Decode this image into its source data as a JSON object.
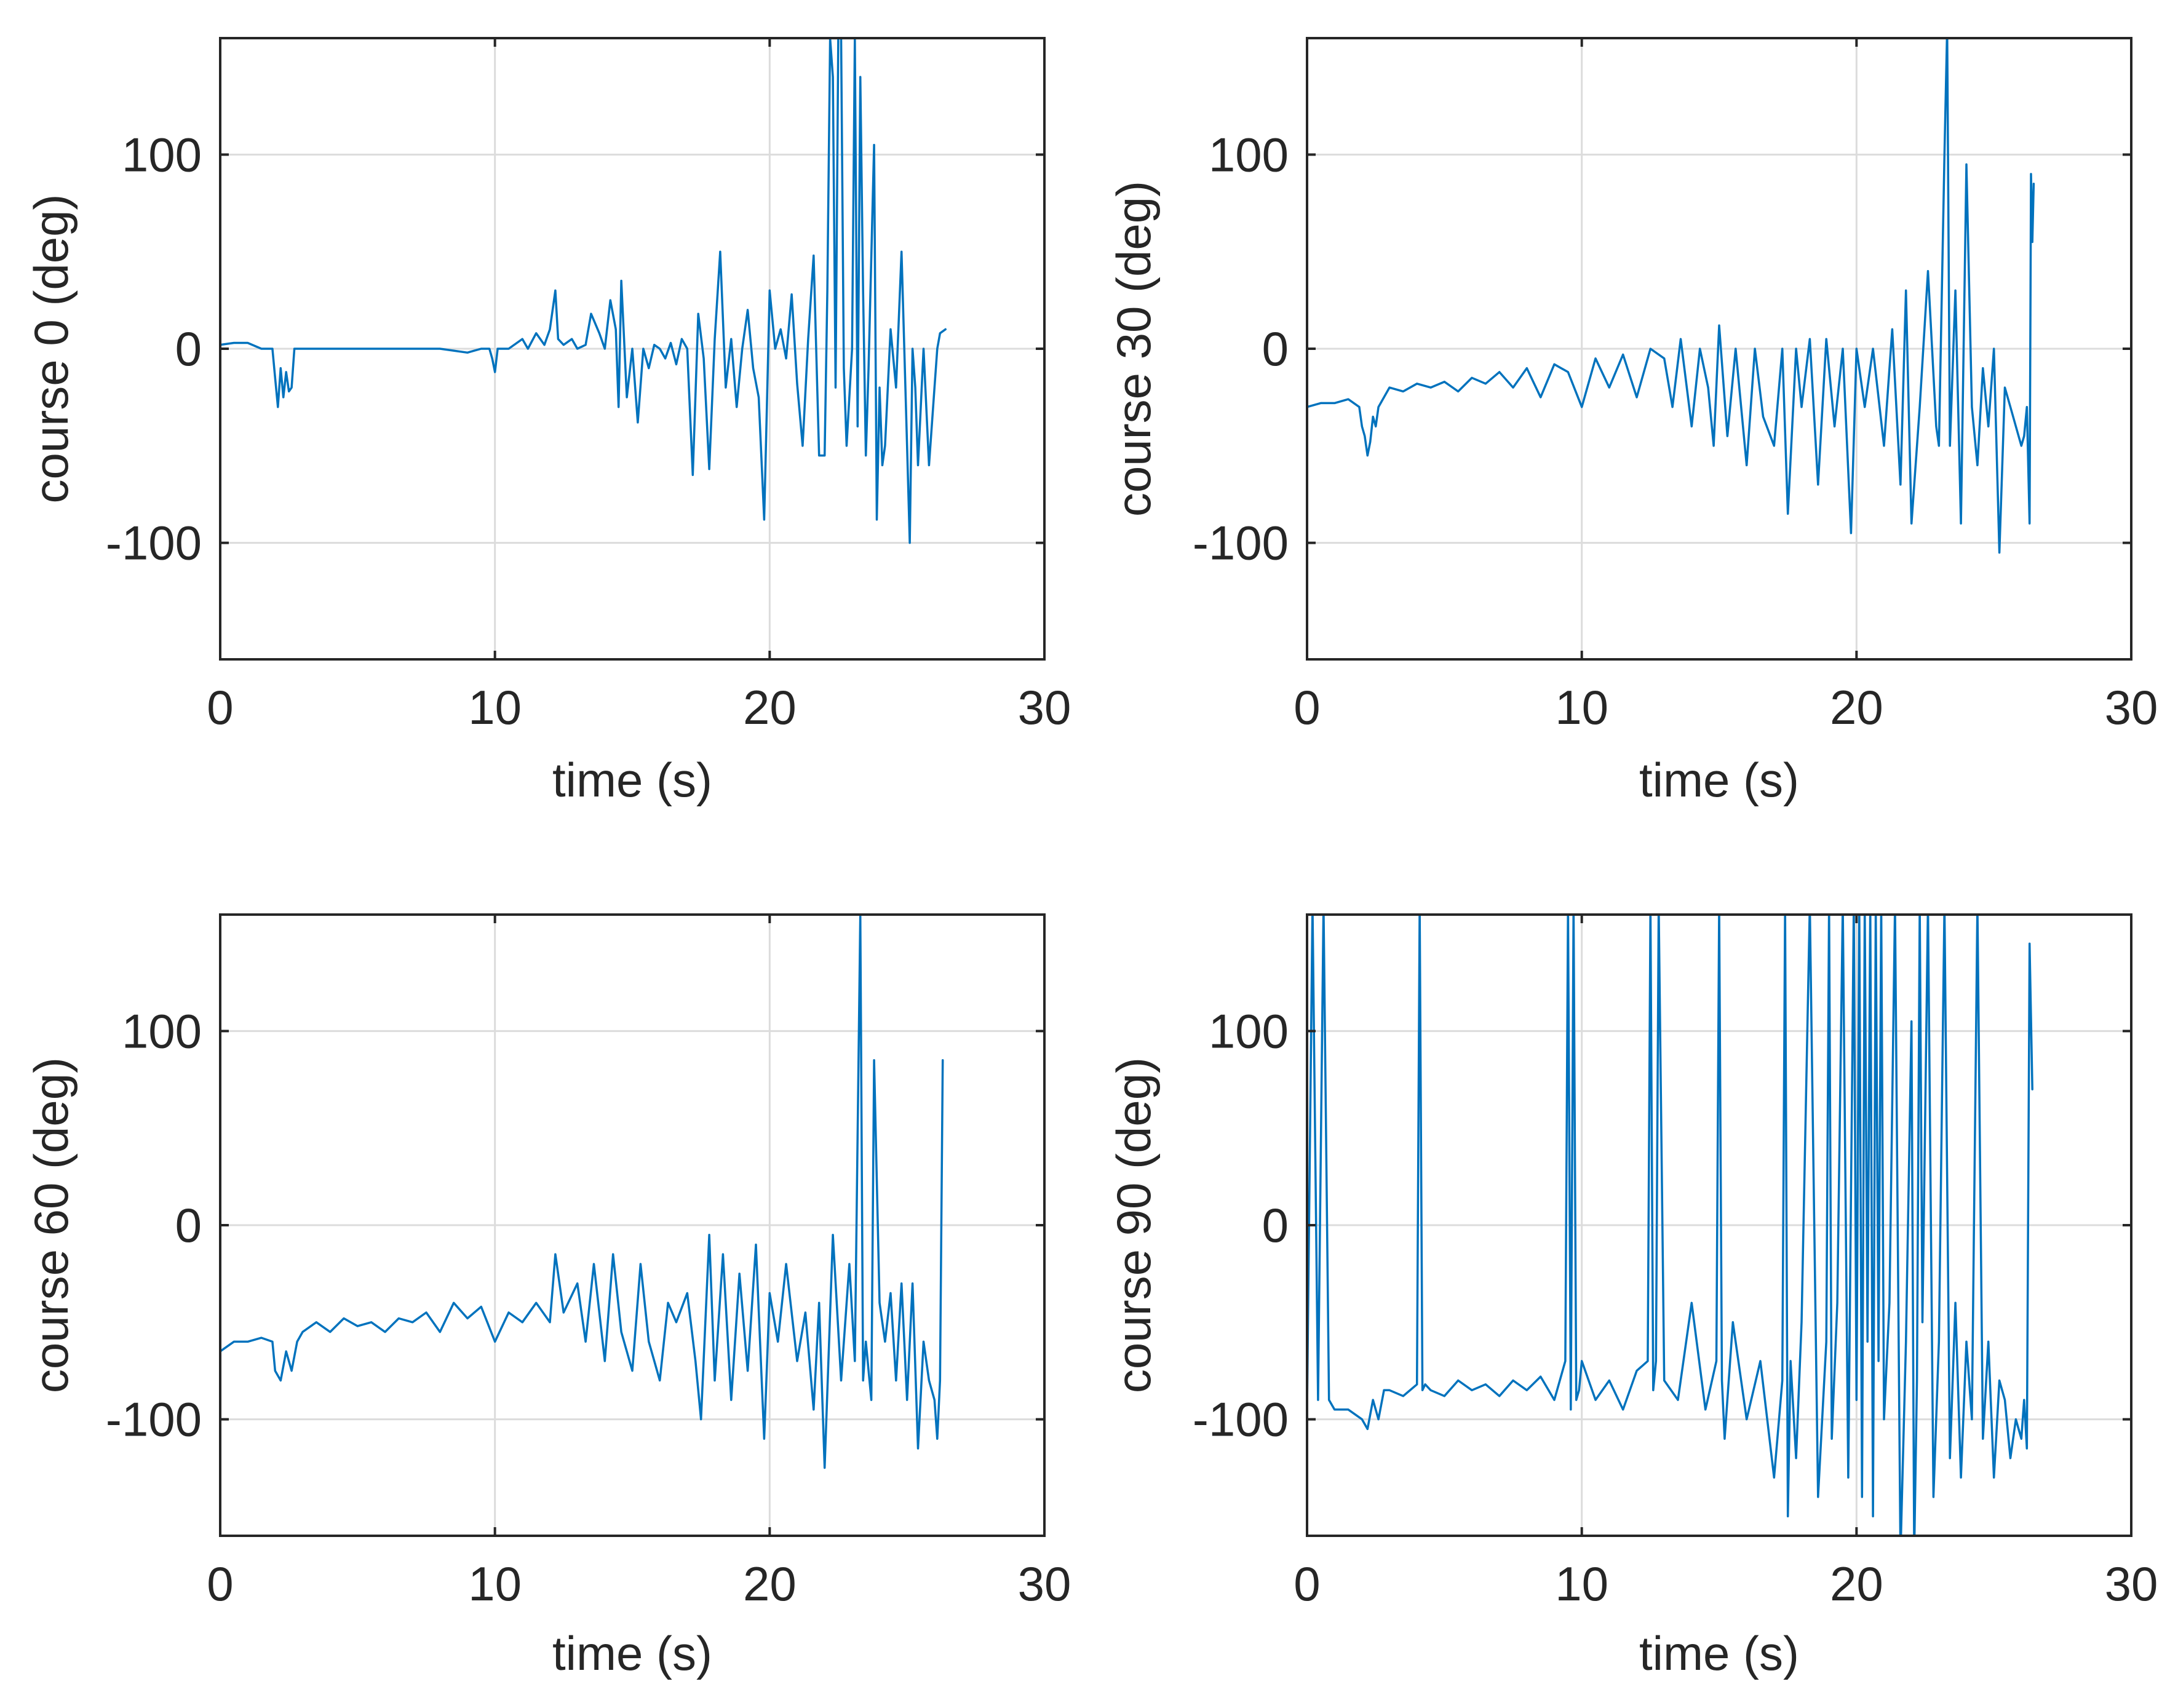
{
  "colors": {
    "series": "#0072BD",
    "axes": "#262626",
    "grid": "#dcdcdc",
    "background": "#ffffff"
  },
  "chart_data": [
    {
      "type": "line",
      "title": "",
      "xlabel": "time (s)",
      "ylabel": "course 0 (deg)",
      "xlim": [
        0,
        30
      ],
      "ylim": [
        -160,
        160
      ],
      "xticks": [
        0,
        10,
        20,
        30
      ],
      "xtick_labels": [
        "0",
        "10",
        "20",
        "30"
      ],
      "yticks": [
        -100,
        0,
        100
      ],
      "ytick_labels": [
        "-100",
        "0",
        "100"
      ],
      "grid": true,
      "series": [
        {
          "name": "course 0",
          "x": [
            0,
            0.5,
            1.0,
            1.5,
            1.9,
            2.0,
            2.1,
            2.2,
            2.3,
            2.4,
            2.5,
            2.6,
            2.7,
            2.8,
            3.0,
            5,
            8,
            9,
            9.5,
            9.8,
            9.9,
            10.0,
            10.1,
            10.5,
            11.0,
            11.2,
            11.5,
            11.8,
            12.0,
            12.2,
            12.3,
            12.5,
            12.8,
            13.0,
            13.3,
            13.5,
            13.8,
            14.0,
            14.2,
            14.4,
            14.5,
            14.6,
            14.7,
            14.8,
            15.0,
            15.2,
            15.4,
            15.6,
            15.8,
            16.0,
            16.2,
            16.4,
            16.6,
            16.8,
            17.0,
            17.2,
            17.4,
            17.6,
            17.8,
            18.0,
            18.2,
            18.4,
            18.6,
            18.8,
            19.0,
            19.2,
            19.4,
            19.6,
            19.8,
            20.0,
            20.2,
            20.4,
            20.6,
            20.8,
            21.0,
            21.2,
            21.4,
            21.6,
            21.8,
            22.0,
            22.1,
            22.2,
            22.3,
            22.4,
            22.5,
            22.6,
            22.7,
            22.8,
            23.0,
            23.1,
            23.2,
            23.3,
            23.4,
            23.5,
            23.6,
            23.8,
            23.9,
            24.0,
            24.1,
            24.2,
            24.4,
            24.6,
            24.8,
            25.0,
            25.1,
            25.2,
            25.3,
            25.4,
            25.6,
            25.8,
            26.0,
            26.1,
            26.2,
            26.4
          ],
          "y": [
            2,
            3,
            3,
            0,
            0,
            -15,
            -30,
            -10,
            -25,
            -12,
            -22,
            -20,
            0,
            0,
            0,
            0,
            0,
            -2,
            0,
            0,
            -5,
            -12,
            0,
            0,
            5,
            0,
            8,
            2,
            10,
            30,
            5,
            2,
            5,
            0,
            2,
            18,
            8,
            0,
            25,
            10,
            -30,
            35,
            5,
            -25,
            0,
            -38,
            0,
            -10,
            2,
            0,
            -5,
            3,
            -8,
            5,
            0,
            -65,
            18,
            -5,
            -62,
            5,
            50,
            -20,
            5,
            -30,
            0,
            20,
            -10,
            -25,
            -88,
            30,
            0,
            10,
            -5,
            28,
            -18,
            -50,
            5,
            48,
            -55,
            -55,
            30,
            160,
            140,
            -20,
            165,
            160,
            -10,
            -50,
            0,
            160,
            -40,
            140,
            30,
            -55,
            -10,
            105,
            -88,
            -20,
            -60,
            -50,
            10,
            -20,
            50,
            -50,
            -100,
            0,
            -20,
            -60,
            0,
            -60,
            -20,
            0,
            8,
            10
          ]
        }
      ]
    },
    {
      "type": "line",
      "title": "",
      "xlabel": "time (s)",
      "ylabel": "course 30 (deg)",
      "xlim": [
        0,
        30
      ],
      "ylim": [
        -160,
        160
      ],
      "xticks": [
        0,
        10,
        20,
        30
      ],
      "xtick_labels": [
        "0",
        "10",
        "20",
        "30"
      ],
      "yticks": [
        -100,
        0,
        100
      ],
      "ytick_labels": [
        "-100",
        "0",
        "100"
      ],
      "grid": true,
      "series": [
        {
          "name": "course 30",
          "x": [
            0,
            0.5,
            1.0,
            1.5,
            1.9,
            2.0,
            2.1,
            2.2,
            2.3,
            2.4,
            2.5,
            2.6,
            2.8,
            3.0,
            3.5,
            4.0,
            4.5,
            5.0,
            5.5,
            6.0,
            6.5,
            7.0,
            7.5,
            8.0,
            8.5,
            9.0,
            9.5,
            10.0,
            10.5,
            11.0,
            11.5,
            12.0,
            12.5,
            13.0,
            13.3,
            13.6,
            14.0,
            14.3,
            14.6,
            14.8,
            15.0,
            15.3,
            15.6,
            16.0,
            16.3,
            16.6,
            17.0,
            17.3,
            17.5,
            17.8,
            18.0,
            18.3,
            18.6,
            18.9,
            19.2,
            19.5,
            19.8,
            20.0,
            20.3,
            20.6,
            21.0,
            21.3,
            21.6,
            21.8,
            22.0,
            22.3,
            22.6,
            22.9,
            23.0,
            23.2,
            23.3,
            23.4,
            23.6,
            23.8,
            24.0,
            24.2,
            24.4,
            24.6,
            24.8,
            25.0,
            25.2,
            25.4,
            25.6,
            25.8,
            26.0,
            26.1,
            26.2,
            26.3,
            26.35,
            26.4,
            26.45
          ],
          "y": [
            -30,
            -28,
            -28,
            -26,
            -30,
            -40,
            -45,
            -55,
            -48,
            -35,
            -40,
            -30,
            -25,
            -20,
            -22,
            -18,
            -20,
            -17,
            -22,
            -15,
            -18,
            -12,
            -20,
            -10,
            -25,
            -8,
            -12,
            -30,
            -5,
            -20,
            -3,
            -25,
            0,
            -5,
            -30,
            5,
            -40,
            0,
            -20,
            -50,
            12,
            -45,
            0,
            -60,
            0,
            -35,
            -50,
            0,
            -85,
            0,
            -30,
            5,
            -70,
            5,
            -40,
            0,
            -95,
            0,
            -30,
            0,
            -50,
            10,
            -70,
            30,
            -90,
            -30,
            40,
            -40,
            -50,
            100,
            165,
            -50,
            30,
            -90,
            95,
            -30,
            -60,
            -10,
            -40,
            0,
            -105,
            -20,
            -30,
            -40,
            -50,
            -45,
            -30,
            -90,
            90,
            55,
            85
          ]
        }
      ]
    },
    {
      "type": "line",
      "title": "",
      "xlabel": "time (s)",
      "ylabel": "course 60 (deg)",
      "xlim": [
        0,
        30
      ],
      "ylim": [
        -160,
        160
      ],
      "xticks": [
        0,
        10,
        20,
        30
      ],
      "xtick_labels": [
        "0",
        "10",
        "20",
        "30"
      ],
      "yticks": [
        -100,
        0,
        100
      ],
      "ytick_labels": [
        "-100",
        "0",
        "100"
      ],
      "grid": true,
      "series": [
        {
          "name": "course 60",
          "x": [
            0,
            0.5,
            1.0,
            1.5,
            1.9,
            2.0,
            2.2,
            2.4,
            2.6,
            2.8,
            3.0,
            3.5,
            4.0,
            4.5,
            5.0,
            5.5,
            6.0,
            6.5,
            7.0,
            7.5,
            8.0,
            8.5,
            9.0,
            9.5,
            10.0,
            10.5,
            11.0,
            11.5,
            12.0,
            12.2,
            12.5,
            13.0,
            13.3,
            13.6,
            14.0,
            14.3,
            14.6,
            15.0,
            15.3,
            15.6,
            16.0,
            16.3,
            16.6,
            17.0,
            17.3,
            17.5,
            17.8,
            18.0,
            18.3,
            18.6,
            18.9,
            19.2,
            19.5,
            19.8,
            20.0,
            20.3,
            20.6,
            21.0,
            21.3,
            21.6,
            21.8,
            22.0,
            22.3,
            22.6,
            22.9,
            23.1,
            23.3,
            23.4,
            23.5,
            23.7,
            23.8,
            24.0,
            24.2,
            24.4,
            24.6,
            24.8,
            25.0,
            25.2,
            25.4,
            25.6,
            25.8,
            26.0,
            26.1,
            26.2,
            26.3
          ],
          "y": [
            -65,
            -60,
            -60,
            -58,
            -60,
            -75,
            -80,
            -65,
            -75,
            -60,
            -55,
            -50,
            -55,
            -48,
            -52,
            -50,
            -55,
            -48,
            -50,
            -45,
            -55,
            -40,
            -48,
            -42,
            -60,
            -45,
            -50,
            -40,
            -50,
            -15,
            -45,
            -30,
            -60,
            -20,
            -70,
            -15,
            -55,
            -75,
            -20,
            -60,
            -80,
            -40,
            -50,
            -35,
            -70,
            -100,
            -5,
            -80,
            -15,
            -90,
            -25,
            -75,
            -10,
            -110,
            -35,
            -60,
            -20,
            -70,
            -45,
            -95,
            -40,
            -125,
            -5,
            -80,
            -20,
            -70,
            160,
            -80,
            -60,
            -90,
            85,
            -40,
            -60,
            -35,
            -80,
            -30,
            -90,
            -30,
            -115,
            -60,
            -80,
            -90,
            -110,
            -80,
            85
          ]
        }
      ]
    },
    {
      "type": "line",
      "title": "",
      "xlabel": "time (s)",
      "ylabel": "course 90 (deg)",
      "xlim": [
        0,
        30
      ],
      "ylim": [
        -160,
        160
      ],
      "xticks": [
        0,
        10,
        20,
        30
      ],
      "xtick_labels": [
        "0",
        "10",
        "20",
        "30"
      ],
      "yticks": [
        -100,
        0,
        100
      ],
      "ytick_labels": [
        "-100",
        "0",
        "100"
      ],
      "grid": true,
      "series": [
        {
          "name": "course 90",
          "x": [
            0,
            0.2,
            0.4,
            0.6,
            0.8,
            1.0,
            1.5,
            2.0,
            2.2,
            2.4,
            2.6,
            2.8,
            3.0,
            3.5,
            4.0,
            4.1,
            4.2,
            4.3,
            4.5,
            5.0,
            5.5,
            6.0,
            6.5,
            7.0,
            7.5,
            8.0,
            8.5,
            9.0,
            9.4,
            9.5,
            9.6,
            9.7,
            9.8,
            9.9,
            10.0,
            10.5,
            11.0,
            11.5,
            12.0,
            12.4,
            12.5,
            12.6,
            12.7,
            12.8,
            13.0,
            13.5,
            14.0,
            14.5,
            14.9,
            15.0,
            15.1,
            15.2,
            15.5,
            16.0,
            16.5,
            17.0,
            17.3,
            17.4,
            17.5,
            17.6,
            17.8,
            18.0,
            18.3,
            18.6,
            18.9,
            19.0,
            19.1,
            19.3,
            19.5,
            19.7,
            19.9,
            20.0,
            20.1,
            20.2,
            20.3,
            20.4,
            20.5,
            20.6,
            20.7,
            20.8,
            20.9,
            21.0,
            21.2,
            21.4,
            21.6,
            21.8,
            22.0,
            22.1,
            22.2,
            22.3,
            22.4,
            22.6,
            22.8,
            23.0,
            23.2,
            23.4,
            23.6,
            23.8,
            24.0,
            24.2,
            24.4,
            24.6,
            24.8,
            25.0,
            25.2,
            25.4,
            25.6,
            25.8,
            26.0,
            26.1,
            26.2,
            26.3,
            26.4
          ],
          "y": [
            -95,
            165,
            -90,
            165,
            -90,
            -95,
            -95,
            -100,
            -105,
            -90,
            -100,
            -85,
            -85,
            -88,
            -82,
            165,
            -85,
            -82,
            -85,
            -88,
            -80,
            -85,
            -82,
            -88,
            -80,
            -85,
            -78,
            -90,
            -70,
            165,
            -95,
            165,
            -90,
            -85,
            -70,
            -90,
            -80,
            -95,
            -75,
            -70,
            165,
            -85,
            -70,
            165,
            -80,
            -90,
            -40,
            -95,
            -70,
            165,
            -80,
            -110,
            -50,
            -100,
            -70,
            -130,
            -80,
            165,
            -150,
            -70,
            -120,
            -50,
            165,
            -140,
            -60,
            165,
            -110,
            -40,
            165,
            -130,
            165,
            -90,
            165,
            -140,
            165,
            -60,
            165,
            -150,
            165,
            -70,
            165,
            -100,
            -40,
            165,
            -170,
            -60,
            105,
            -170,
            -80,
            165,
            -50,
            165,
            -140,
            -60,
            165,
            -120,
            -40,
            -130,
            -60,
            -100,
            165,
            -110,
            -60,
            -130,
            -80,
            -90,
            -120,
            -100,
            -110,
            -90,
            -115,
            145,
            70
          ]
        }
      ]
    }
  ]
}
